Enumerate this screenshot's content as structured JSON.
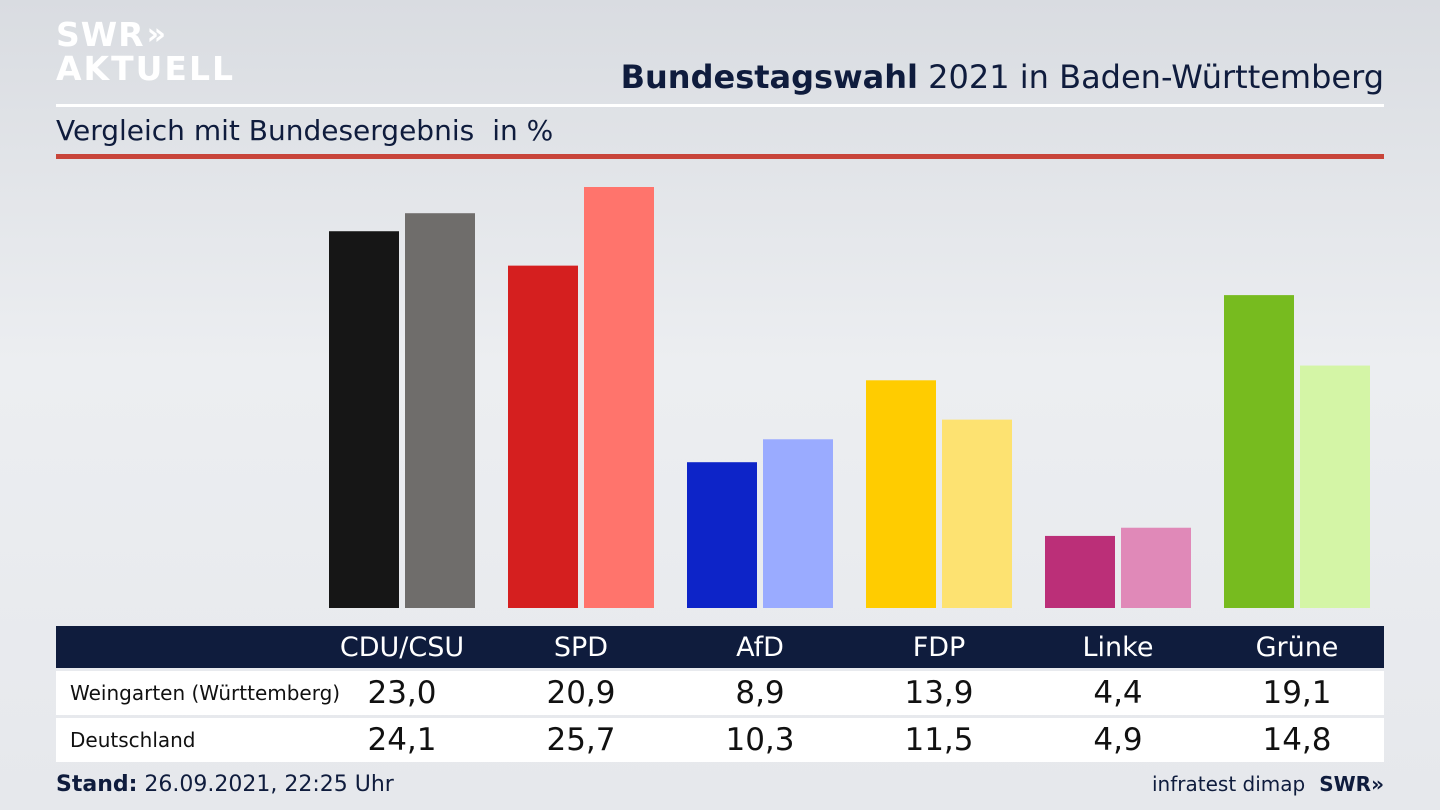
{
  "logo": {
    "line1": "SWR",
    "line1_chevrons": "»",
    "line2": "AKTUELL"
  },
  "header": {
    "title_bold": "Bundestagswahl",
    "title_rest": "2021 in Baden-Württemberg",
    "subtitle": "Vergleich mit Bundesergebnis",
    "unit": "in %"
  },
  "colors": {
    "navy": "#0f1c3d",
    "accent_red": "#c8453a",
    "parties": {
      "CDU/CSU": [
        "#161616",
        "#6f6d6b"
      ],
      "SPD": [
        "#d51f1f",
        "#ff746c"
      ],
      "AfD": [
        "#0d24c8",
        "#9aabff"
      ],
      "FDP": [
        "#ffcc00",
        "#fde271"
      ],
      "Linke": [
        "#bb2f78",
        "#e089b8"
      ],
      "Grüne": [
        "#77bb1f",
        "#d4f5a6"
      ]
    }
  },
  "chart_data": {
    "type": "bar",
    "categories": [
      "CDU/CSU",
      "SPD",
      "AfD",
      "FDP",
      "Linke",
      "Grüne"
    ],
    "series": [
      {
        "name": "Weingarten (Württemberg)",
        "values": [
          23.0,
          20.9,
          8.9,
          13.9,
          4.4,
          19.1
        ]
      },
      {
        "name": "Deutschland",
        "values": [
          24.1,
          25.7,
          10.3,
          11.5,
          4.9,
          14.8
        ]
      }
    ],
    "ylim": [
      0,
      25.7
    ],
    "grid": false
  },
  "table": {
    "headers": [
      "CDU/CSU",
      "SPD",
      "AfD",
      "FDP",
      "Linke",
      "Grüne"
    ],
    "rows": [
      {
        "label": "Weingarten (Württemberg)",
        "values": [
          "23,0",
          "20,9",
          "8,9",
          "13,9",
          "4,4",
          "19,1"
        ]
      },
      {
        "label": "Deutschland",
        "values": [
          "24,1",
          "25,7",
          "10,3",
          "11,5",
          "4,9",
          "14,8"
        ]
      }
    ]
  },
  "footer": {
    "stand_label": "Stand:",
    "stand_value": "26.09.2021, 22:25 Uhr",
    "source": "infratest dimap",
    "brand": "SWR»"
  }
}
